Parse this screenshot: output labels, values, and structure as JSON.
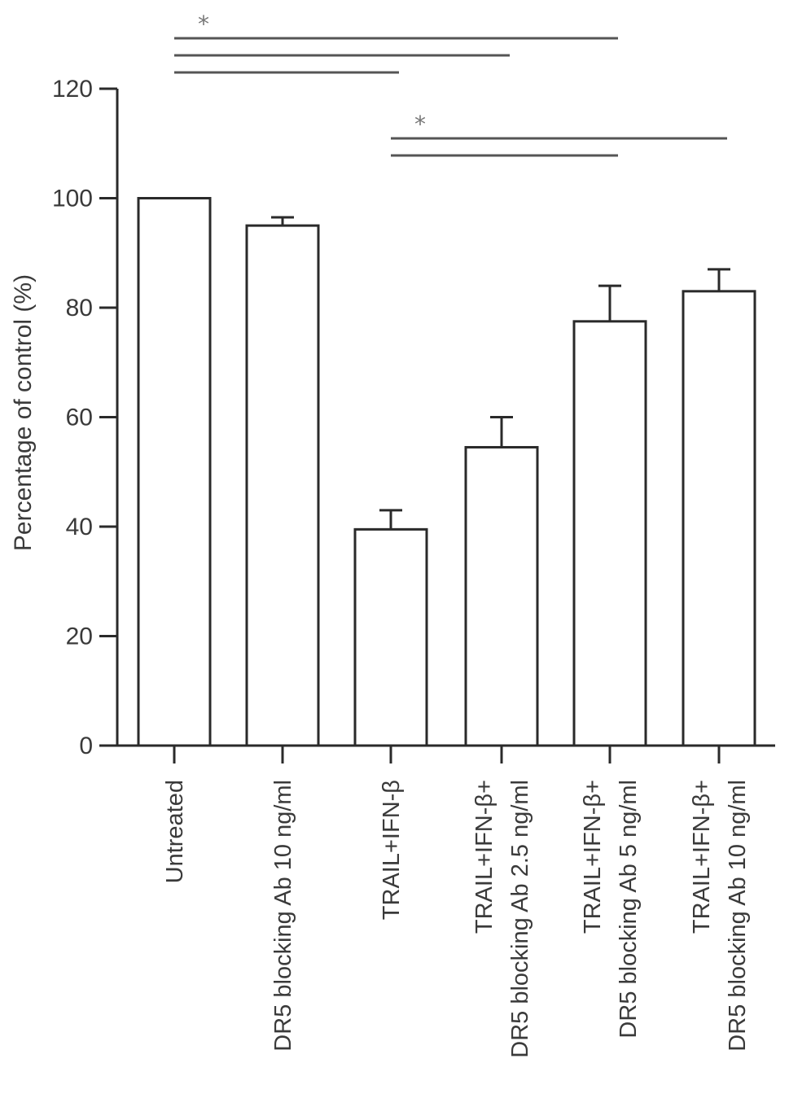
{
  "chart_data": {
    "type": "bar",
    "categories": [
      [
        "Untreated"
      ],
      [
        "DR5 blocking Ab 10 ng/ml"
      ],
      [
        "TRAIL+IFN-β"
      ],
      [
        "TRAIL+IFN-β+",
        "DR5 blocking Ab 2.5 ng/ml"
      ],
      [
        "TRAIL+IFN-β+",
        "DR5 blocking Ab 5 ng/ml"
      ],
      [
        "TRAIL+IFN-β+",
        "DR5 blocking Ab 10 ng/ml"
      ]
    ],
    "values": [
      100,
      95,
      39.5,
      54.5,
      77.5,
      83
    ],
    "errors": [
      0,
      1.5,
      3.5,
      5.5,
      6.5,
      4
    ],
    "ylabel": "Percentage of control (%)",
    "ylim": [
      0,
      120
    ],
    "yticks": [
      0,
      20,
      40,
      60,
      80,
      100,
      120
    ],
    "grid": false,
    "significance": [
      {
        "label": "*",
        "brackets": [
          [
            0,
            4
          ],
          [
            0,
            3
          ],
          [
            0,
            2
          ]
        ]
      },
      {
        "label": "*",
        "brackets": [
          [
            2,
            5
          ],
          [
            2,
            4
          ]
        ]
      }
    ]
  }
}
